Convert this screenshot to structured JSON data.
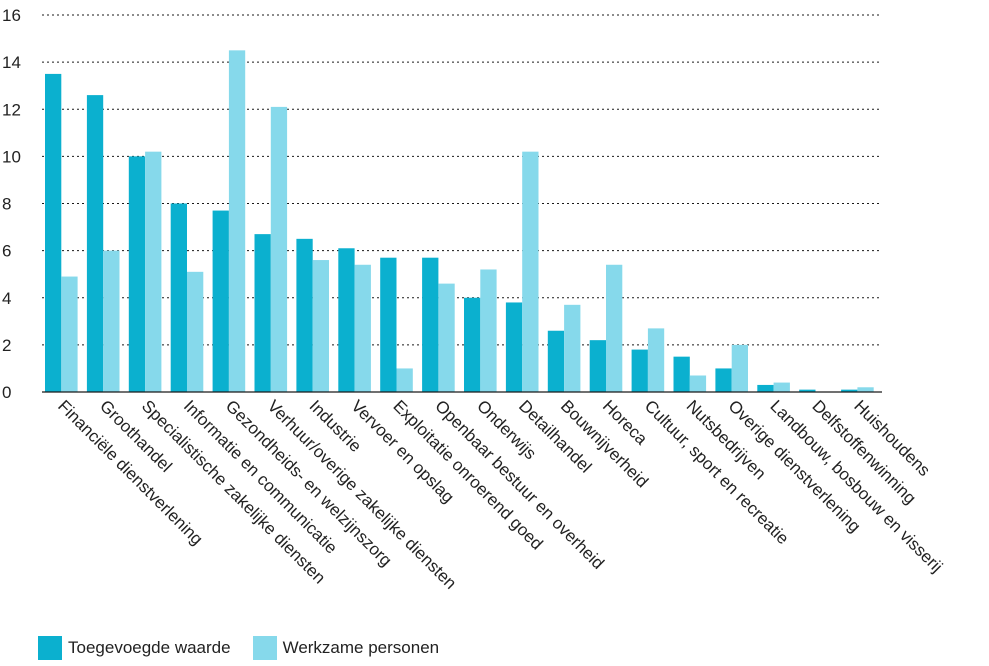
{
  "chart_data": {
    "type": "bar",
    "title": "",
    "xlabel": "",
    "ylabel": "",
    "ylim": [
      0,
      16
    ],
    "yticks": [
      0,
      2,
      4,
      6,
      8,
      10,
      12,
      14,
      16
    ],
    "grid": "dotted horizontal",
    "legend_position": "bottom-left",
    "categories": [
      "Financiële dienstverlening",
      "Groothandel",
      "Specialistische zakelijke diensten",
      "Informatie en communicatie",
      "Gezondheids- en welzijnszorg",
      "Verhuur/overige zakelijke diensten",
      "Industrie",
      "Vervoer en opslag",
      "Exploitatie onroerend goed",
      "Openbaar bestuur en overheid",
      "Onderwijs",
      "Detailhandel",
      "Bouwnijverheid",
      "Horeca",
      "Cultuur, sport en recreatie",
      "Nutsbedrijven",
      "Overige dienstverlening",
      "Landbouw, bosbouw en visserij",
      "Delfstoffenwinning",
      "Huishoudens"
    ],
    "series": [
      {
        "name": "Toegevoegde waarde",
        "color": "#0bb0cf",
        "values": [
          13.5,
          12.6,
          10.0,
          8.0,
          7.7,
          6.7,
          6.5,
          6.1,
          5.7,
          5.7,
          4.0,
          3.8,
          2.6,
          2.2,
          1.8,
          1.5,
          1.0,
          0.3,
          0.1,
          0.1
        ]
      },
      {
        "name": "Werkzame personen",
        "color": "#86d9eb",
        "values": [
          4.9,
          6.0,
          10.2,
          5.1,
          14.5,
          12.1,
          5.6,
          5.4,
          1.0,
          4.6,
          5.2,
          10.2,
          3.7,
          5.4,
          2.7,
          0.7,
          2.0,
          0.4,
          0.0,
          0.2
        ]
      }
    ]
  }
}
